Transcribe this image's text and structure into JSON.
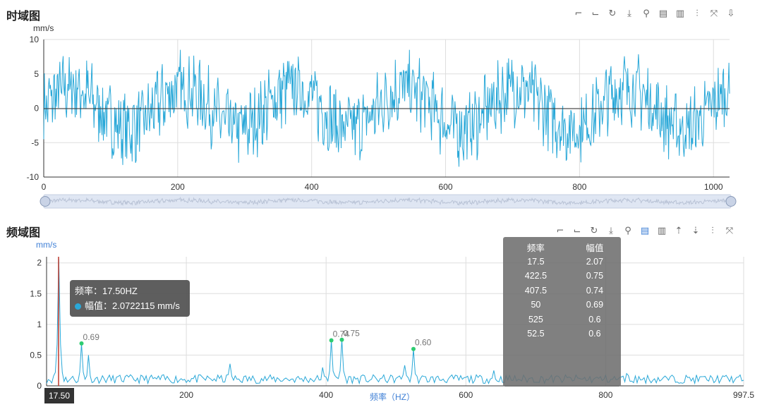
{
  "time_panel": {
    "title": "时域图",
    "unit": "mm/s",
    "toolbar_icons": [
      "crop-icon",
      "crop-back-icon",
      "reset-icon",
      "download-icon",
      "marker-icon",
      "data-view-icon",
      "bar-icon",
      "sliders-icon",
      "split-icon",
      "save-icon"
    ]
  },
  "freq_panel": {
    "title": "频域图",
    "unit": "mm/s",
    "xlabel": "频率（HZ）",
    "toolbar_icons": [
      "crop-icon",
      "crop-back-icon",
      "reset-icon",
      "download-icon",
      "marker-icon",
      "data-view-icon",
      "bar-icon",
      "sort-asc-icon",
      "sort-desc-icon",
      "sliders-icon",
      "split-icon"
    ],
    "tooltip": {
      "freq_label": "频率：17.50HZ",
      "amp_label": "幅值：2.0722115 mm/s"
    },
    "pointer_label": "17.50",
    "table": {
      "headers": [
        "频率",
        "幅值"
      ],
      "rows": [
        [
          "17.5",
          "2.07"
        ],
        [
          "422.5",
          "0.75"
        ],
        [
          "407.5",
          "0.74"
        ],
        [
          "50",
          "0.69"
        ],
        [
          "525",
          "0.6"
        ],
        [
          "52.5",
          "0.6"
        ]
      ]
    }
  },
  "colors": {
    "series": "#2aa8d8",
    "zero_line": "#333333",
    "grid": "#dddddd",
    "peak": "#2ecc71",
    "cursor": "#c0392b"
  },
  "chart_data": [
    {
      "type": "line",
      "title": "时域图",
      "ylabel": "mm/s",
      "xlim": [
        0,
        1024
      ],
      "ylim": [
        -10,
        10
      ],
      "xticks": [
        0,
        200,
        400,
        600,
        800,
        1000
      ],
      "yticks": [
        10,
        5,
        0,
        -5,
        -10
      ],
      "grid": true,
      "series": [
        {
          "values_note": "vibration waveform oscillating between about -8 and 8 mm/s"
        }
      ]
    },
    {
      "type": "line",
      "title": "频域图",
      "ylabel": "mm/s",
      "xlabel": "频率（HZ）",
      "xlim": [
        0,
        997.5
      ],
      "ylim": [
        0,
        2.1
      ],
      "xticks": [
        200,
        400,
        600,
        800
      ],
      "xtick_end": "997.5",
      "yticks": [
        2,
        1.5,
        1,
        0.5,
        0
      ],
      "grid": true,
      "peaks": [
        {
          "x": 17.5,
          "y": 2.07,
          "label": ""
        },
        {
          "x": 50,
          "y": 0.69,
          "label": "0.69"
        },
        {
          "x": 407.5,
          "y": 0.74,
          "label": "0.74"
        },
        {
          "x": 422.5,
          "y": 0.75,
          "label": "0.75"
        },
        {
          "x": 525,
          "y": 0.6,
          "label": "0.60"
        }
      ]
    }
  ]
}
